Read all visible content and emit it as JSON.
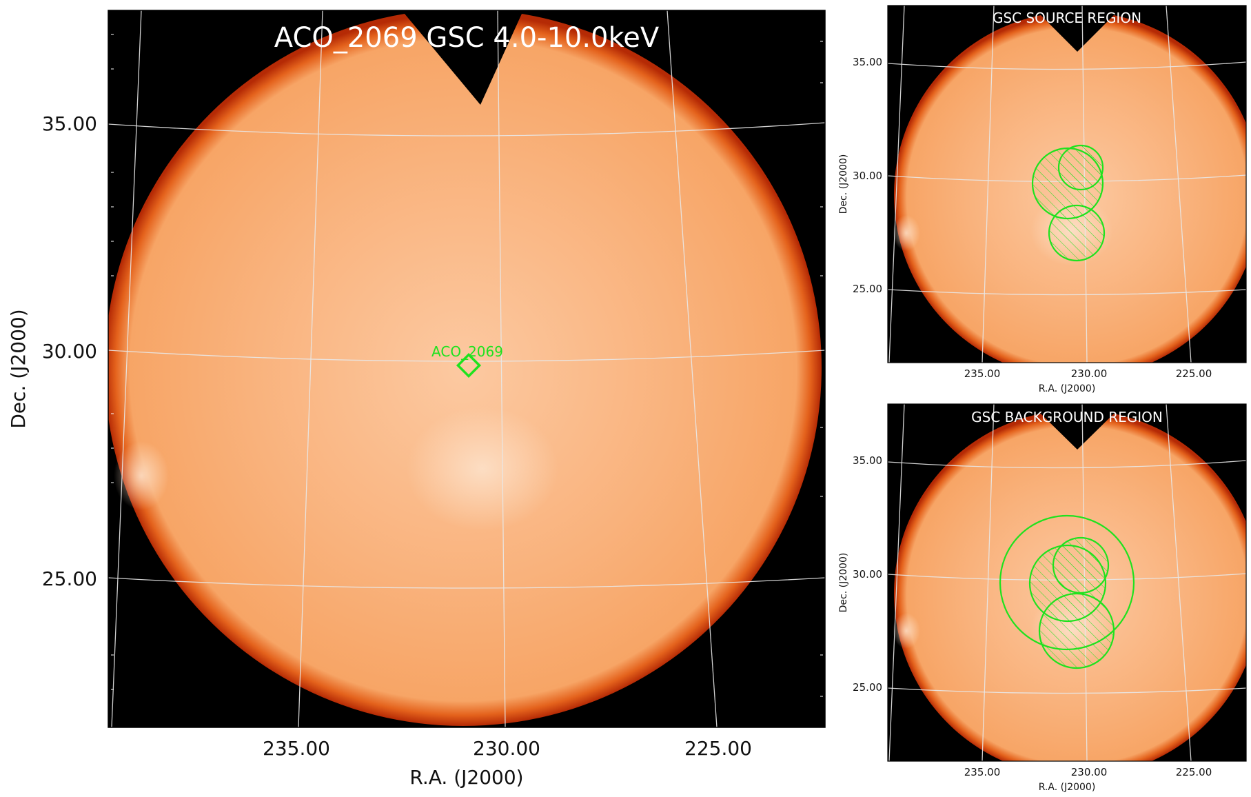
{
  "main_panel": {
    "title": "ACO_2069 GSC 4.0-10.0keV",
    "xlabel": "R.A. (J2000)",
    "ylabel": "Dec. (J2000)",
    "x_ticks": [
      "235.00",
      "230.00",
      "225.00"
    ],
    "y_ticks": [
      "35.00",
      "30.00",
      "25.00"
    ],
    "source_label": "ACO_2069",
    "marker_color": "#1ee21e"
  },
  "source_panel": {
    "title": "GSC SOURCE REGION",
    "xlabel": "R.A. (J2000)",
    "ylabel": "Dec. (J2000)",
    "x_ticks": [
      "235.00",
      "230.00",
      "225.00"
    ],
    "y_ticks": [
      "35.00",
      "30.00",
      "25.00"
    ]
  },
  "background_panel": {
    "title": "GSC BACKGROUND REGION",
    "xlabel": "R.A. (J2000)",
    "ylabel": "Dec. (J2000)",
    "x_ticks": [
      "235.00",
      "230.00",
      "225.00"
    ],
    "y_ticks": [
      "35.00",
      "30.00",
      "25.00"
    ]
  },
  "colormap": {
    "background": "#000000",
    "disk": "#f8ad74",
    "edge": "#d8400c",
    "region_color": "#1ee21e"
  }
}
